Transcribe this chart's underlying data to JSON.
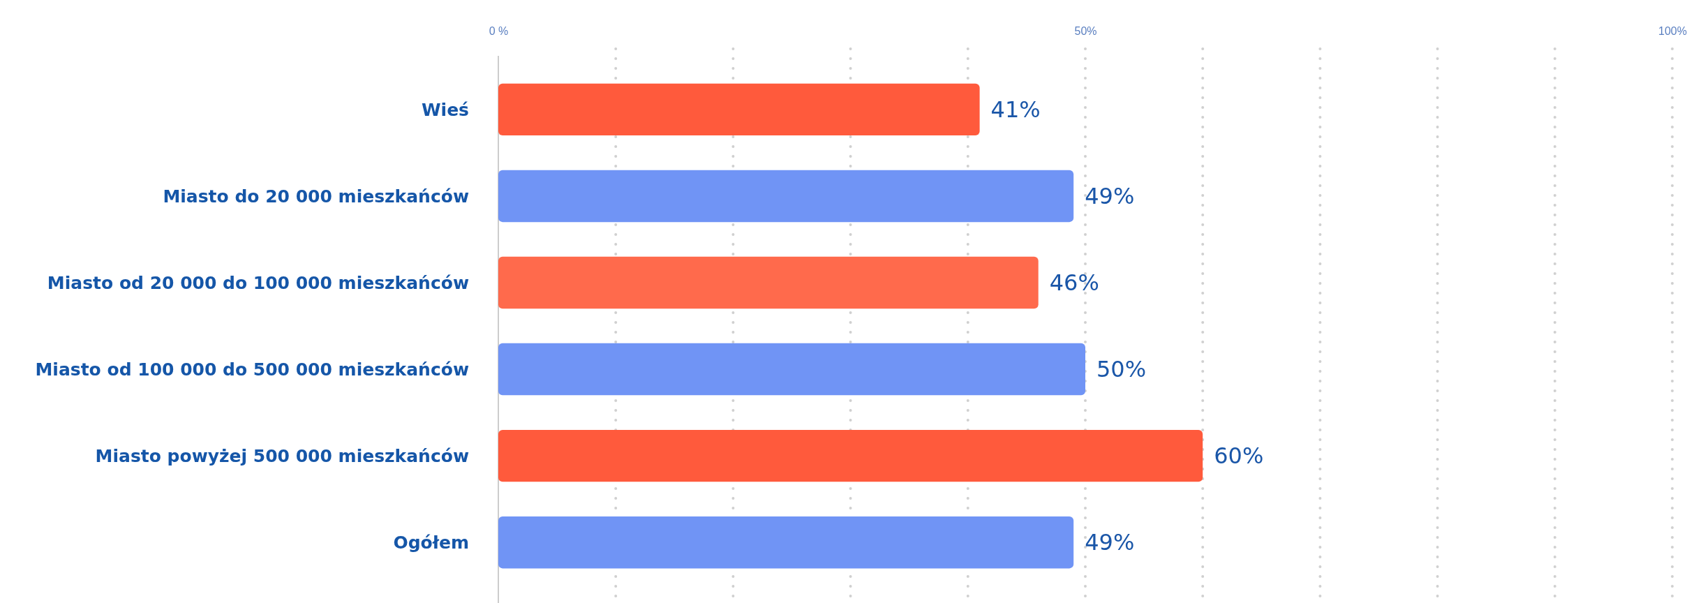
{
  "chart_data": {
    "type": "bar",
    "orientation": "horizontal",
    "categories": [
      "Wieś",
      "Miasto do 20 000 mieszkańców",
      "Miasto od 20 000 do 100 000 mieszkańców",
      "Miasto od 100 000 do 500 000 mieszkańców",
      "Miasto powyżej 500 000 mieszkańców",
      "Ogółem"
    ],
    "values": [
      41,
      49,
      46,
      50,
      60,
      49
    ],
    "colors": [
      "#ff5a3c",
      "#7094f5",
      "#ff6a4c",
      "#7094f5",
      "#ff5a3c",
      "#7094f5"
    ],
    "value_labels": [
      "41%",
      "49%",
      "46%",
      "50%",
      "60%",
      "49%"
    ],
    "xlim": [
      0,
      100
    ],
    "xticks": [
      {
        "value": 0,
        "label": "0 %"
      },
      {
        "value": 10,
        "label": null
      },
      {
        "value": 20,
        "label": null
      },
      {
        "value": 30,
        "label": null
      },
      {
        "value": 40,
        "label": null
      },
      {
        "value": 50,
        "label": "50%"
      },
      {
        "value": 60,
        "label": null
      },
      {
        "value": 70,
        "label": null
      },
      {
        "value": 80,
        "label": null
      },
      {
        "value": 90,
        "label": null
      },
      {
        "value": 100,
        "label": "100%"
      }
    ],
    "grid": "x"
  }
}
